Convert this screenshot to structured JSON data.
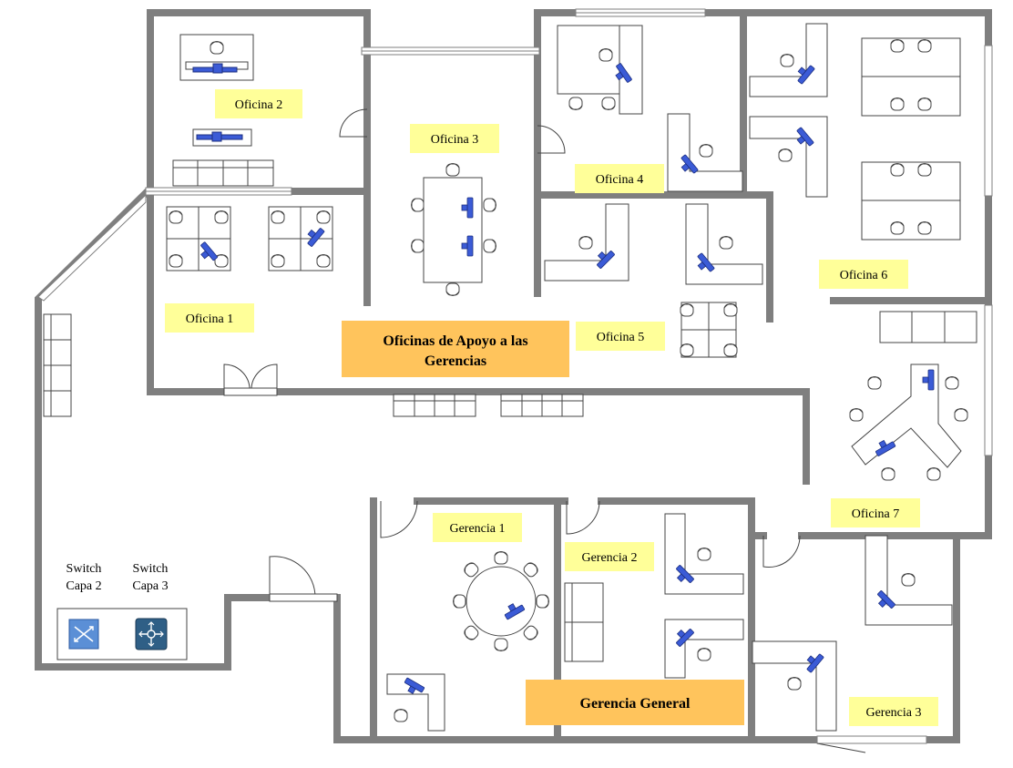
{
  "title_main": {
    "line1": "Oficinas de Apoyo a las",
    "line2": "Gerencias"
  },
  "title_general": "Gerencia General",
  "rooms": {
    "of1": "Oficina 1",
    "of2": "Oficina 2",
    "of3": "Oficina 3",
    "of4": "Oficina 4",
    "of5": "Oficina 5",
    "of6": "Oficina 6",
    "of7": "Oficina 7",
    "g1": "Gerencia 1",
    "g2": "Gerencia 2",
    "g3": "Gerencia 3"
  },
  "network": {
    "switch2": {
      "line1": "Switch",
      "line2": "Capa 2"
    },
    "switch3": {
      "line1": "Switch",
      "line2": "Capa 3"
    }
  },
  "colors": {
    "wall": "#7f7f7f",
    "label_bg": "#ffff99",
    "title_bg": "#ffc45c",
    "monitor": "#3b5bd6",
    "switch2": "#5b8fd6",
    "switch3": "#2f5f86"
  }
}
